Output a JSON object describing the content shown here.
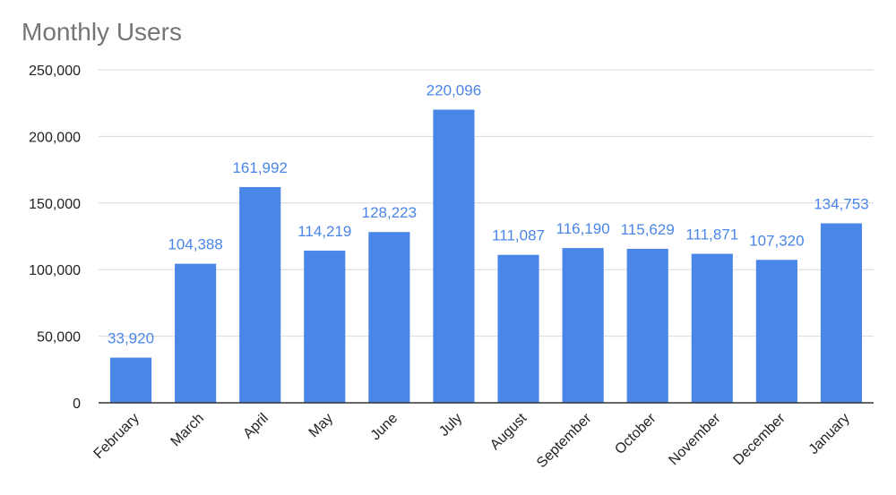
{
  "chart_data": {
    "type": "bar",
    "title": "Monthly Users",
    "xlabel": "",
    "ylabel": "",
    "categories": [
      "February",
      "March",
      "April",
      "May",
      "June",
      "July",
      "August",
      "September",
      "October",
      "November",
      "December",
      "January"
    ],
    "values": [
      33920,
      104388,
      161992,
      114219,
      128223,
      220096,
      111087,
      116190,
      115629,
      111871,
      107320,
      134753
    ],
    "data_labels": [
      "33,920",
      "104,388",
      "161,992",
      "114,219",
      "128,223",
      "220,096",
      "111,087",
      "116,190",
      "115,629",
      "111,871",
      "107,320",
      "134,753"
    ],
    "ylim": [
      0,
      250000
    ],
    "yticks": [
      0,
      50000,
      100000,
      150000,
      200000,
      250000
    ],
    "ytick_labels": [
      "0",
      "50,000",
      "100,000",
      "150,000",
      "200,000",
      "250,000"
    ],
    "bar_color": "#4a86e8",
    "label_color": "#4a86e8",
    "grid": true,
    "legend": "none"
  }
}
